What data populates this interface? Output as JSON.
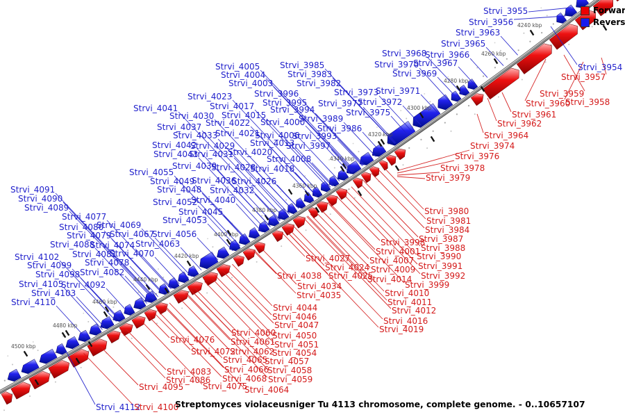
{
  "figure": {
    "caption": "Streptomyces violaceusniger Tu 4113 chromosome, complete genome. - 0..10657107"
  },
  "legend": {
    "forward": {
      "label": "Forward",
      "color": "#ee0000"
    },
    "reverse": {
      "label": "Reverse",
      "color": "#1a1aee"
    }
  },
  "map": {
    "backbone_color": "#8c8c8c",
    "label_colors": {
      "R": "#2222cc",
      "F": "#d41a1a"
    },
    "gene_colors": {
      "forward_main": "#ee1111",
      "reverse_main": "#2222ee"
    },
    "curve": {
      "p0": [
        870,
        -8
      ],
      "c": [
        442,
        326
      ],
      "p1": [
        -15,
        572
      ]
    },
    "ticks": [
      [
        "4240 kbp",
        745,
        33
      ],
      [
        "4260 kbp",
        693,
        74
      ],
      [
        "4280 kbp",
        639,
        113
      ],
      [
        "4300 kbp",
        586,
        152
      ],
      [
        "4320 kbp",
        530,
        190
      ],
      [
        "4340 kbp",
        475,
        225
      ],
      [
        "4360 kbp",
        421,
        264
      ],
      [
        "4380 kbp",
        363,
        299
      ],
      [
        "4400 kbp",
        308,
        334
      ],
      [
        "4420 kbp",
        251,
        365
      ],
      [
        "4440 kbp",
        192,
        399
      ],
      [
        "4460 kbp",
        133,
        431
      ],
      [
        "4480 kbp",
        76,
        465
      ],
      [
        "4500 kbp",
        16,
        495
      ]
    ],
    "gene_labels": [
      [
        "Strvi_3955",
        "R",
        696,
        10,
        822,
        11
      ],
      [
        "Strvi_3956",
        "R",
        675,
        26,
        814,
        23
      ],
      [
        "Strvi_3963",
        "R",
        656,
        41
      ],
      [
        "Strvi_3965",
        "R",
        635,
        57
      ],
      [
        "Strvi_3968",
        "R",
        550,
        71
      ],
      [
        "Strvi_3966",
        "R",
        612,
        73
      ],
      [
        "Strvi_3970",
        "R",
        539,
        87
      ],
      [
        "Strvi_3967",
        "R",
        595,
        85
      ],
      [
        "Strvi_3969",
        "R",
        565,
        100
      ],
      [
        "Strvi_3954",
        "R",
        832,
        91,
        793,
        38
      ],
      [
        "Strvi_3971",
        "R",
        541,
        125
      ],
      [
        "Strvi_3973",
        "R",
        481,
        127
      ],
      [
        "Strvi_3972",
        "R",
        515,
        141
      ],
      [
        "Strvi_3977",
        "R",
        458,
        143
      ],
      [
        "Strvi_3975",
        "R",
        498,
        156
      ],
      [
        "Strvi_3985",
        "R",
        403,
        88
      ],
      [
        "Strvi_3983",
        "R",
        414,
        101
      ],
      [
        "Strvi_3982",
        "R",
        427,
        114
      ],
      [
        "Strvi_4005",
        "R",
        310,
        90
      ],
      [
        "Strvi_4004",
        "R",
        318,
        102
      ],
      [
        "Strvi_4003",
        "R",
        329,
        114
      ],
      [
        "Strvi_3996",
        "R",
        366,
        129
      ],
      [
        "Strvi_3995",
        "R",
        378,
        142
      ],
      [
        "Strvi_3994",
        "R",
        389,
        152
      ],
      [
        "Strvi_4000",
        "R",
        375,
        170
      ],
      [
        "Strvi_3989",
        "R",
        430,
        165
      ],
      [
        "Strvi_3986",
        "R",
        457,
        179
      ],
      [
        "Strvi_4006",
        "R",
        367,
        189
      ],
      [
        "Strvi_3993",
        "R",
        421,
        190
      ],
      [
        "Strvi_4013",
        "R",
        360,
        200
      ],
      [
        "Strvi_3997",
        "R",
        412,
        204
      ],
      [
        "Strvi_4008",
        "R",
        384,
        223
      ],
      [
        "Strvi_4018",
        "R",
        360,
        237
      ],
      [
        "Strvi_4023",
        "R",
        270,
        133
      ],
      [
        "Strvi_4017",
        "R",
        302,
        147
      ],
      [
        "Strvi_4041",
        "R",
        192,
        150
      ],
      [
        "Strvi_4030",
        "R",
        244,
        161
      ],
      [
        "Strvi_4015",
        "R",
        319,
        160
      ],
      [
        "Strvi_4022",
        "R",
        296,
        171
      ],
      [
        "Strvi_4037",
        "R",
        226,
        177
      ],
      [
        "Strvi_4033",
        "R",
        249,
        189
      ],
      [
        "Strvi_4021",
        "R",
        310,
        186
      ],
      [
        "Strvi_4042",
        "R",
        219,
        203
      ],
      [
        "Strvi_4029",
        "R",
        274,
        204
      ],
      [
        "Strvi_4043",
        "R",
        221,
        216
      ],
      [
        "Strvi_4031",
        "R",
        272,
        216
      ],
      [
        "Strvi_4020",
        "R",
        328,
        213
      ],
      [
        "Strvi_4039",
        "R",
        248,
        233
      ],
      [
        "Strvi_4028",
        "R",
        304,
        235
      ],
      [
        "Strvi_4055",
        "R",
        186,
        242
      ],
      [
        "Strvi_4049",
        "R",
        216,
        255
      ],
      [
        "Strvi_4036",
        "R",
        276,
        254
      ],
      [
        "Strvi_4026",
        "R",
        334,
        255
      ],
      [
        "Strvi_4048",
        "R",
        226,
        267
      ],
      [
        "Strvi_4032",
        "R",
        302,
        268
      ],
      [
        "Strvi_4052",
        "R",
        220,
        285
      ],
      [
        "Strvi_4040",
        "R",
        275,
        282
      ],
      [
        "Strvi_4045",
        "R",
        257,
        299
      ],
      [
        "Strvi_4053",
        "R",
        234,
        311
      ],
      [
        "Strvi_4091",
        "R",
        15,
        267
      ],
      [
        "Strvi_4090",
        "R",
        26,
        280
      ],
      [
        "Strvi_4089",
        "R",
        35,
        293
      ],
      [
        "Strvi_4077",
        "R",
        89,
        306
      ],
      [
        "Strvi_4080",
        "R",
        85,
        321
      ],
      [
        "Strvi_4069",
        "R",
        139,
        318
      ],
      [
        "Strvi_4079",
        "R",
        96,
        333
      ],
      [
        "Strvi_4067",
        "R",
        158,
        331
      ],
      [
        "Strvi_4088",
        "R",
        72,
        346
      ],
      [
        "Strvi_4074",
        "R",
        130,
        347
      ],
      [
        "Strvi_4063",
        "R",
        195,
        345
      ],
      [
        "Strvi_4056",
        "R",
        219,
        331
      ],
      [
        "Strvi_4102",
        "R",
        21,
        364
      ],
      [
        "Strvi_4081",
        "R",
        104,
        360
      ],
      [
        "Strvi_4070",
        "R",
        158,
        359
      ],
      [
        "Strvi_4099",
        "R",
        39,
        376
      ],
      [
        "Strvi_4078",
        "R",
        122,
        372
      ],
      [
        "Strvi_4098",
        "R",
        51,
        389
      ],
      [
        "Strvi_4082",
        "R",
        115,
        386
      ],
      [
        "Strvi_4105",
        "R",
        27,
        403
      ],
      [
        "Strvi_4092",
        "R",
        88,
        404
      ],
      [
        "Strvi_4103",
        "R",
        45,
        416
      ],
      [
        "Strvi_4110",
        "R",
        16,
        429
      ],
      [
        "Strvi_4112",
        "R",
        138,
        580,
        95,
        505
      ],
      [
        "Strvi_3957",
        "F",
        808,
        105,
        866,
        83
      ],
      [
        "Strvi_3959",
        "F",
        777,
        129,
        812,
        79
      ],
      [
        "Strvi_3960",
        "F",
        757,
        143,
        786,
        85
      ],
      [
        "Strvi_3958",
        "F",
        814,
        141,
        840,
        89
      ],
      [
        "Strvi_3961",
        "F",
        737,
        159,
        723,
        133
      ],
      [
        "Strvi_3962",
        "F",
        716,
        172,
        702,
        141
      ],
      [
        "Strvi_3964",
        "F",
        697,
        189,
        687,
        164
      ],
      [
        "Strvi_3974",
        "F",
        677,
        204,
        574,
        245
      ],
      [
        "Strvi_3976",
        "F",
        655,
        219,
        572,
        249
      ],
      [
        "Strvi_3978",
        "F",
        634,
        236,
        572,
        252
      ],
      [
        "Strvi_3979",
        "F",
        613,
        250,
        572,
        254
      ],
      [
        "Strvi_3980",
        "F",
        611,
        298
      ],
      [
        "Strvi_3981",
        "F",
        614,
        312
      ],
      [
        "Strvi_3984",
        "F",
        612,
        325
      ],
      [
        "Strvi_3987",
        "F",
        603,
        338
      ],
      [
        "Strvi_3988",
        "F",
        606,
        351
      ],
      [
        "Strvi_3990",
        "F",
        600,
        363
      ],
      [
        "Strvi_3991",
        "F",
        602,
        377
      ],
      [
        "Strvi_3992",
        "F",
        606,
        391
      ],
      [
        "Strvi_3998",
        "F",
        548,
        343
      ],
      [
        "Strvi_4001",
        "F",
        541,
        356
      ],
      [
        "Strvi_4007",
        "F",
        532,
        369
      ],
      [
        "Strvi_4009",
        "F",
        534,
        382
      ],
      [
        "Strvi_4014",
        "F",
        529,
        396
      ],
      [
        "Strvi_3999",
        "F",
        583,
        404
      ],
      [
        "Strvi_4010",
        "F",
        554,
        416
      ],
      [
        "Strvi_4011",
        "F",
        558,
        429
      ],
      [
        "Strvi_4012",
        "F",
        564,
        441
      ],
      [
        "Strvi_4016",
        "F",
        552,
        456
      ],
      [
        "Strvi_4019",
        "F",
        546,
        468
      ],
      [
        "Strvi_4027",
        "F",
        440,
        366
      ],
      [
        "Strvi_4024",
        "F",
        468,
        379
      ],
      [
        "Strvi_4025",
        "F",
        473,
        391
      ],
      [
        "Strvi_4038",
        "F",
        399,
        391
      ],
      [
        "Strvi_4034",
        "F",
        428,
        406
      ],
      [
        "Strvi_4035",
        "F",
        427,
        419
      ],
      [
        "Strvi_4044",
        "F",
        393,
        437
      ],
      [
        "Strvi_4046",
        "F",
        392,
        450
      ],
      [
        "Strvi_4047",
        "F",
        395,
        462
      ],
      [
        "Strvi_4050",
        "F",
        392,
        477
      ],
      [
        "Strvi_4051",
        "F",
        395,
        490
      ],
      [
        "Strvi_4054",
        "F",
        392,
        502
      ],
      [
        "Strvi_4057",
        "F",
        381,
        514
      ],
      [
        "Strvi_4058",
        "F",
        385,
        527
      ],
      [
        "Strvi_4059",
        "F",
        386,
        540
      ],
      [
        "Strvi_4060",
        "F",
        333,
        473
      ],
      [
        "Strvi_4061",
        "F",
        332,
        486
      ],
      [
        "Strvi_4062",
        "F",
        331,
        500
      ],
      [
        "Strvi_4065",
        "F",
        321,
        512
      ],
      [
        "Strvi_4066",
        "F",
        323,
        526
      ],
      [
        "Strvi_4068",
        "F",
        320,
        539
      ],
      [
        "Strvi_4075",
        "F",
        292,
        550
      ],
      [
        "Strvi_4064",
        "F",
        352,
        555
      ],
      [
        "Strvi_4076",
        "F",
        245,
        483
      ],
      [
        "Strvi_4072",
        "F",
        275,
        500
      ],
      [
        "Strvi_4083",
        "F",
        240,
        529
      ],
      [
        "Strvi_4086",
        "F",
        239,
        541
      ],
      [
        "Strvi_4095",
        "F",
        200,
        551
      ],
      [
        "Strvi_4100",
        "F",
        193,
        580
      ]
    ],
    "genes": [
      [
        852,
        866,
        "R"
      ],
      [
        836,
        850,
        "R"
      ],
      [
        820,
        833,
        "R"
      ],
      [
        808,
        818,
        "R"
      ],
      [
        680,
        690,
        "R"
      ],
      [
        668,
        678,
        "R"
      ],
      [
        656,
        666,
        "R"
      ],
      [
        638,
        654,
        "R",
        18
      ],
      [
        602,
        636,
        "R",
        18
      ],
      [
        565,
        600,
        "R",
        18
      ],
      [
        542,
        558,
        "R"
      ],
      [
        524,
        540,
        "R"
      ],
      [
        505,
        522,
        "R"
      ],
      [
        492,
        504,
        "R"
      ],
      [
        480,
        490,
        "R"
      ],
      [
        468,
        478,
        "R"
      ],
      [
        456,
        466,
        "R"
      ],
      [
        444,
        454,
        "R"
      ],
      [
        432,
        442,
        "R"
      ],
      [
        420,
        430,
        "R"
      ],
      [
        406,
        418,
        "R"
      ],
      [
        392,
        404,
        "R"
      ],
      [
        378,
        390,
        "R"
      ],
      [
        364,
        376,
        "R"
      ],
      [
        350,
        362,
        "R"
      ],
      [
        336,
        348,
        "R"
      ],
      [
        318,
        332,
        "R"
      ],
      [
        294,
        316,
        "R",
        17
      ],
      [
        276,
        288,
        "R"
      ],
      [
        262,
        274,
        "R"
      ],
      [
        248,
        260,
        "R"
      ],
      [
        234,
        246,
        "R"
      ],
      [
        214,
        228,
        "R"
      ],
      [
        198,
        212,
        "R"
      ],
      [
        184,
        196,
        "R"
      ],
      [
        168,
        182,
        "R"
      ],
      [
        150,
        166,
        "R"
      ],
      [
        134,
        148,
        "R"
      ],
      [
        118,
        132,
        "R"
      ],
      [
        100,
        116,
        "R"
      ],
      [
        86,
        98,
        "R"
      ],
      [
        62,
        84,
        "R"
      ],
      [
        36,
        58,
        "R"
      ],
      [
        16,
        32,
        "R"
      ],
      [
        877,
        898,
        "F",
        16
      ],
      [
        852,
        875,
        "F",
        18
      ],
      [
        826,
        850,
        "F",
        18
      ],
      [
        789,
        824,
        "F",
        18
      ],
      [
        742,
        787,
        "F",
        18
      ],
      [
        693,
        740,
        "F",
        18
      ],
      [
        676,
        690,
        "F"
      ],
      [
        566,
        578,
        "F"
      ],
      [
        554,
        564,
        "F"
      ],
      [
        544,
        552,
        "F"
      ],
      [
        530,
        540,
        "F"
      ],
      [
        518,
        528,
        "F"
      ],
      [
        506,
        516,
        "F"
      ],
      [
        482,
        494,
        "F"
      ],
      [
        468,
        480,
        "F"
      ],
      [
        454,
        466,
        "F"
      ],
      [
        442,
        452,
        "F"
      ],
      [
        420,
        434,
        "F"
      ],
      [
        404,
        418,
        "F"
      ],
      [
        390,
        402,
        "F"
      ],
      [
        364,
        376,
        "F"
      ],
      [
        348,
        362,
        "F"
      ],
      [
        334,
        346,
        "F"
      ],
      [
        310,
        326,
        "F"
      ],
      [
        290,
        308,
        "F"
      ],
      [
        268,
        286,
        "F"
      ],
      [
        248,
        266,
        "F"
      ],
      [
        222,
        236,
        "F"
      ],
      [
        206,
        220,
        "F"
      ],
      [
        188,
        204,
        "F"
      ],
      [
        170,
        186,
        "F"
      ],
      [
        152,
        168,
        "F"
      ],
      [
        124,
        148,
        "F",
        17
      ],
      [
        96,
        122,
        "F",
        17
      ],
      [
        68,
        94,
        "F",
        17
      ],
      [
        40,
        66,
        "F",
        17
      ],
      [
        14,
        38,
        "F",
        17
      ],
      [
        0,
        12,
        "F",
        17
      ]
    ],
    "feature_dashes": [
      [
        695,
        128
      ],
      [
        623,
        200
      ],
      [
        547,
        207
      ],
      [
        493,
        243
      ],
      [
        518,
        278
      ],
      [
        418,
        276
      ],
      [
        871,
        40
      ],
      [
        572,
        242
      ],
      [
        457,
        302
      ],
      [
        330,
        335
      ],
      [
        240,
        418
      ],
      [
        152,
        452
      ],
      [
        92,
        482
      ],
      [
        130,
        495
      ],
      [
        112,
        519
      ],
      [
        53,
        550
      ]
    ]
  }
}
